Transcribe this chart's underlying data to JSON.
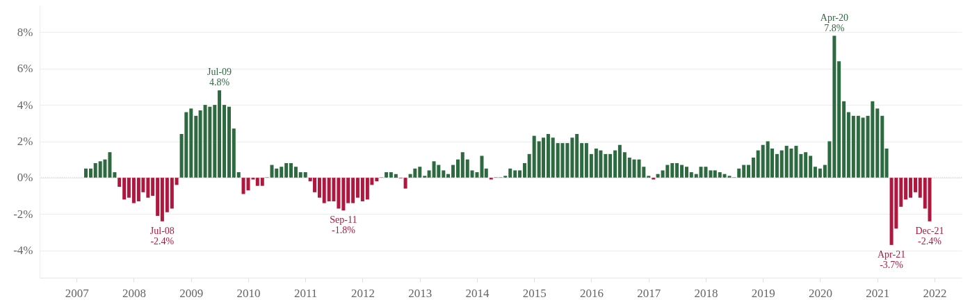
{
  "chart_data": {
    "type": "bar",
    "series": [
      {
        "color": "#2d6a40",
        "x": [
          "2007-03",
          "2007-04",
          "2007-05",
          "2007-06",
          "2007-07",
          "2007-08",
          "2007-09",
          "2008-11",
          "2008-12",
          "2009-01",
          "2009-02",
          "2009-03",
          "2009-04",
          "2009-05",
          "2009-06",
          "2009-07",
          "2009-08",
          "2009-09",
          "2009-10",
          "2009-11",
          "2010-05",
          "2010-06",
          "2010-07",
          "2010-08",
          "2010-09",
          "2010-10",
          "2010-11",
          "2010-12",
          "2011-01",
          "2012-05",
          "2012-06",
          "2012-07",
          "2012-08",
          "2012-11",
          "2012-12",
          "2013-01",
          "2013-02",
          "2013-03",
          "2013-04",
          "2013-05",
          "2013-06",
          "2013-07",
          "2013-08",
          "2013-09",
          "2013-10",
          "2013-11",
          "2013-12",
          "2014-01",
          "2014-02",
          "2014-03",
          "2014-05",
          "2014-06",
          "2014-07",
          "2014-08",
          "2014-09",
          "2014-10",
          "2014-11",
          "2014-12",
          "2015-01",
          "2015-02",
          "2015-03",
          "2015-04",
          "2015-05",
          "2015-06",
          "2015-07",
          "2015-08",
          "2015-09",
          "2015-10",
          "2015-11",
          "2015-12",
          "2016-01",
          "2016-02",
          "2016-03",
          "2016-04",
          "2016-05",
          "2016-06",
          "2016-07",
          "2016-08",
          "2016-09",
          "2016-10",
          "2016-11",
          "2016-12",
          "2017-01",
          "2017-03",
          "2017-04",
          "2017-05",
          "2017-06",
          "2017-07",
          "2017-08",
          "2017-09",
          "2017-10",
          "2017-11",
          "2017-12",
          "2018-01",
          "2018-02",
          "2018-03",
          "2018-04",
          "2018-05",
          "2018-06",
          "2018-07",
          "2018-08",
          "2018-09",
          "2018-10",
          "2018-11",
          "2018-12",
          "2019-01",
          "2019-02",
          "2019-03",
          "2019-04",
          "2019-05",
          "2019-06",
          "2019-07",
          "2019-08",
          "2019-09",
          "2019-10",
          "2019-11",
          "2019-12",
          "2020-01",
          "2020-02",
          "2020-03",
          "2020-04",
          "2020-05",
          "2020-06",
          "2020-07",
          "2020-08",
          "2020-09",
          "2020-10",
          "2020-11",
          "2020-12",
          "2021-01",
          "2021-02",
          "2021-03"
        ],
        "values": [
          0.5,
          0.5,
          0.8,
          0.9,
          1.0,
          1.4,
          0.3,
          2.4,
          3.6,
          3.8,
          3.4,
          3.7,
          4.0,
          3.9,
          4.0,
          4.8,
          4.0,
          3.9,
          2.7,
          0.3,
          0.02,
          0.7,
          0.5,
          0.6,
          0.8,
          0.8,
          0.6,
          0.3,
          0.3,
          0.02,
          0.3,
          0.3,
          0.2,
          0.2,
          0.5,
          0.6,
          0.1,
          0.4,
          0.9,
          0.7,
          0.4,
          0.2,
          0.7,
          1.0,
          1.4,
          1.0,
          0.4,
          0.3,
          1.2,
          0.5,
          0.02,
          0.02,
          0.1,
          0.5,
          0.4,
          0.4,
          0.8,
          1.3,
          2.3,
          2.0,
          2.2,
          2.4,
          2.2,
          1.9,
          1.9,
          1.9,
          2.2,
          2.4,
          1.9,
          1.9,
          1.3,
          1.6,
          1.5,
          1.3,
          1.3,
          1.5,
          1.8,
          1.4,
          1.1,
          1.0,
          1.0,
          0.6,
          0.1,
          0.2,
          0.4,
          0.7,
          0.8,
          0.8,
          0.7,
          0.6,
          0.3,
          0.2,
          0.6,
          0.6,
          0.4,
          0.4,
          0.3,
          0.2,
          0.1,
          0.02,
          0.5,
          0.7,
          0.7,
          1.1,
          1.5,
          1.8,
          2.0,
          1.6,
          1.3,
          1.5,
          1.75,
          1.6,
          1.75,
          1.3,
          1.4,
          1.2,
          0.6,
          0.5,
          0.7,
          2.0,
          7.8,
          6.4,
          4.2,
          3.6,
          3.4,
          3.4,
          3.3,
          3.4,
          4.2,
          3.8,
          3.4,
          1.6
        ]
      },
      {
        "color": "#b0173f",
        "x": [
          "2007-10",
          "2007-11",
          "2007-12",
          "2008-01",
          "2008-02",
          "2008-03",
          "2008-04",
          "2008-05",
          "2008-06",
          "2008-07",
          "2008-08",
          "2008-09",
          "2008-10",
          "2009-12",
          "2010-01",
          "2010-02",
          "2010-03",
          "2010-04",
          "2011-02",
          "2011-03",
          "2011-04",
          "2011-05",
          "2011-06",
          "2011-07",
          "2011-08",
          "2011-09",
          "2011-10",
          "2011-11",
          "2011-12",
          "2012-01",
          "2012-02",
          "2012-03",
          "2012-04",
          "2012-09",
          "2012-10",
          "2014-04",
          "2017-02",
          "2021-04",
          "2021-05",
          "2021-06",
          "2021-07",
          "2021-08",
          "2021-09",
          "2021-10",
          "2021-11",
          "2021-12"
        ],
        "values": [
          -0.5,
          -1.2,
          -1.1,
          -1.4,
          -1.3,
          -0.8,
          -1.1,
          -1.0,
          -2.1,
          -2.4,
          -1.9,
          -1.7,
          -0.4,
          -0.9,
          -0.7,
          -0.1,
          -0.45,
          -0.45,
          -0.2,
          -0.8,
          -1.1,
          -1.4,
          -1.3,
          -1.3,
          -1.7,
          -1.8,
          -1.4,
          -1.4,
          -1.1,
          -1.3,
          -1.2,
          -0.4,
          -0.2,
          -0.03,
          -0.6,
          -0.1,
          -0.1,
          -3.7,
          -2.8,
          -1.6,
          -1.2,
          -1.1,
          -0.8,
          -1.1,
          -1.7,
          -2.4
        ]
      }
    ],
    "xlim": [
      "2006-06",
      "2022-06"
    ],
    "xticks": [
      "2007",
      "2008",
      "2009",
      "2010",
      "2011",
      "2012",
      "2013",
      "2014",
      "2015",
      "2016",
      "2017",
      "2018",
      "2019",
      "2020",
      "2021",
      "2022"
    ],
    "ylim": [
      -5.5,
      9.5
    ],
    "yticks": [
      {
        "value": -4,
        "label": "-4%"
      },
      {
        "value": -2,
        "label": "-2%"
      },
      {
        "value": 0,
        "label": "0%"
      },
      {
        "value": 2,
        "label": "2%"
      },
      {
        "value": 4,
        "label": "4%"
      },
      {
        "value": 6,
        "label": "6%"
      },
      {
        "value": 8,
        "label": "8%"
      }
    ],
    "grid": "y",
    "ref_lines": [
      {
        "axis": "y",
        "value": 0,
        "color": "#c8c8c8",
        "line_style": "dotted"
      }
    ],
    "annotations": [
      {
        "text": "Jul-08\n-2.4%",
        "x": "2008-07",
        "y": -2.4
      },
      {
        "text": "Jul-09\n4.8%",
        "x": "2009-07",
        "y": 4.8
      },
      {
        "text": "Sep-11\n-1.8%",
        "x": "2011-09",
        "y": -1.8
      },
      {
        "text": "Apr-20\n7.8%",
        "x": "2020-04",
        "y": 7.8
      },
      {
        "text": "Apr-21\n-3.7%",
        "x": "2021-04",
        "y": -3.7
      },
      {
        "text": "Dec-21\n-2.4%",
        "x": "2021-12",
        "y": -2.4
      }
    ]
  }
}
